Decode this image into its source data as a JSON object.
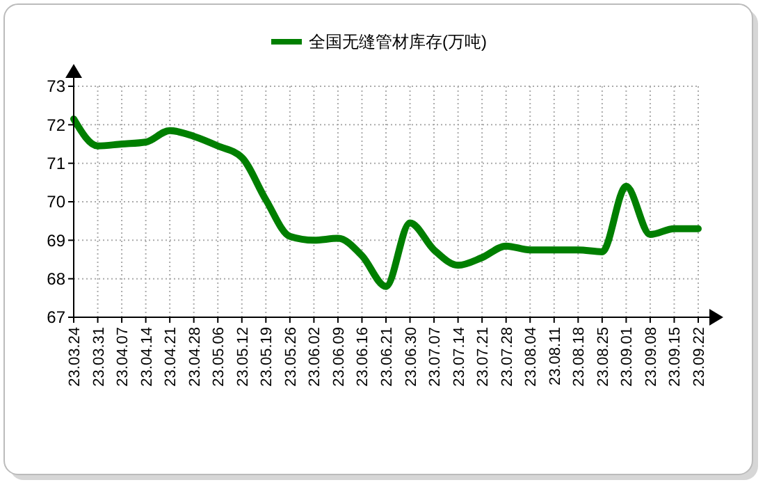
{
  "chart_data": {
    "type": "line",
    "categories": [
      "23.03.24",
      "23.03.31",
      "23.04.07",
      "23.04.14",
      "23.04.21",
      "23.04.28",
      "23.05.06",
      "23.05.12",
      "23.05.19",
      "23.05.26",
      "23.06.02",
      "23.06.09",
      "23.06.16",
      "23.06.21",
      "23.06.30",
      "23.07.07",
      "23.07.14",
      "23.07.21",
      "23.07.28",
      "23.08.04",
      "23.08.11",
      "23.08.18",
      "23.08.25",
      "23.09.01",
      "23.09.08",
      "23.09.15",
      "23.09.22"
    ],
    "series": [
      {
        "name": "全国无缝管材库存(万吨)",
        "color": "#007f00",
        "values": [
          72.15,
          71.45,
          71.5,
          71.55,
          71.85,
          71.7,
          71.45,
          71.15,
          70.05,
          69.1,
          69.0,
          69.05,
          68.6,
          67.8,
          69.45,
          68.75,
          68.35,
          68.55,
          68.85,
          68.75,
          68.75,
          68.75,
          68.7,
          70.4,
          69.15,
          69.3,
          69.3
        ]
      }
    ],
    "ylim": [
      67,
      73
    ],
    "yticks": [
      67,
      68,
      69,
      70,
      71,
      72,
      73
    ],
    "grid": true,
    "legend": "top",
    "marker": "none",
    "line_style": "solid"
  }
}
